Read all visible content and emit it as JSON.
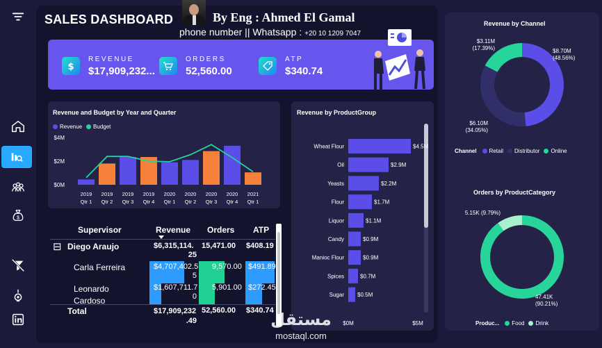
{
  "header": {
    "title": "SALES DASHBOARD",
    "byline": "By  Eng : Ahmed El Gamal",
    "phone_label": "phone number || Whatsapp :",
    "phone_number": "+20 10 1209 7047"
  },
  "kpis": [
    {
      "label": "REVENUE",
      "value": "$17,909,232...",
      "icon": "dollar-icon"
    },
    {
      "label": "ORDERS",
      "value": "52,560.00",
      "icon": "cart-icon"
    },
    {
      "label": "ATP",
      "value": "$340.74",
      "icon": "tag-icon"
    }
  ],
  "sidebar": {
    "items": [
      "menu-icon",
      "home-icon",
      "analytics-icon",
      "team-icon",
      "money-bag-icon",
      "filter-clear-icon",
      "bulb-icon",
      "linkedin-icon"
    ]
  },
  "colors": {
    "revenue": "#5b4ee8",
    "budget": "#24d39b",
    "orange": "#f5813a",
    "retail": "#5b4ee8",
    "distributor": "#302f6a",
    "online": "#27d59a",
    "food": "#27d59a",
    "drink": "#a8f0cf"
  },
  "chart_data": [
    {
      "type": "bar",
      "title": "Revenue and Budget by Year and Quarter",
      "legend": [
        "Revenue",
        "Budget"
      ],
      "y_ticks": [
        "$4M",
        "$2M",
        "$0M"
      ],
      "ylim": [
        0,
        4
      ],
      "categories": [
        {
          "year": "2019",
          "q": "Qtr 1"
        },
        {
          "year": "2019",
          "q": "Qtr 2"
        },
        {
          "year": "2019",
          "q": "Qtr 3"
        },
        {
          "year": "2019",
          "q": "Qtr 4"
        },
        {
          "year": "2020",
          "q": "Qtr 1"
        },
        {
          "year": "2020",
          "q": "Qtr 2"
        },
        {
          "year": "2020",
          "q": "Qtr 3"
        },
        {
          "year": "2020",
          "q": "Qtr 4"
        },
        {
          "year": "2021",
          "q": "Qtr 1"
        }
      ],
      "series": [
        {
          "name": "Revenue",
          "values": [
            0.45,
            1.8,
            2.35,
            2.35,
            1.9,
            2.1,
            2.85,
            3.3,
            1.05
          ],
          "highlight": [
            false,
            true,
            false,
            true,
            false,
            false,
            true,
            false,
            true
          ]
        },
        {
          "name": "Budget",
          "values": [
            0.6,
            2.4,
            2.4,
            2.0,
            1.95,
            2.55,
            3.4,
            2.3,
            1.1
          ]
        }
      ]
    },
    {
      "type": "bar",
      "title": "Revenue by ProductGroup",
      "orientation": "horizontal",
      "categories": [
        "Wheat Flour",
        "Oil",
        "Yeasts",
        "Flour",
        "Liquor",
        "Candy",
        "Manioc Flour",
        "Spices",
        "Sugar"
      ],
      "values": [
        4.5,
        2.9,
        2.2,
        1.7,
        1.1,
        0.9,
        0.9,
        0.7,
        0.5
      ],
      "value_labels": [
        "$4.5M",
        "$2.9M",
        "$2.2M",
        "$1.7M",
        "$1.1M",
        "$0.9M",
        "$0.9M",
        "$0.7M",
        "$0.5M"
      ],
      "x_ticks": [
        "$0M",
        "$5M"
      ],
      "xlim": [
        0,
        5
      ]
    },
    {
      "type": "pie",
      "title": "Revenue by Channel",
      "legend_title": "Channel",
      "slices": [
        {
          "name": "Retail",
          "value": 48.56,
          "label": "$8.70M",
          "pct": "(48.56%)"
        },
        {
          "name": "Distributor",
          "value": 34.05,
          "label": "$6.10M",
          "pct": "(34.05%)"
        },
        {
          "name": "Online",
          "value": 17.39,
          "label": "$3.11M",
          "pct": "(17.39%)"
        }
      ]
    },
    {
      "type": "pie",
      "title": "Orders by ProductCategory",
      "legend_title": "Produc...",
      "slices": [
        {
          "name": "Food",
          "value": 90.21,
          "label": "47.41K",
          "pct": "(90.21%)"
        },
        {
          "name": "Drink",
          "value": 9.79,
          "label": "5.15K (9.79%)",
          "pct": ""
        }
      ]
    }
  ],
  "table": {
    "headers": [
      "Supervisor",
      "Revenue",
      "Orders",
      "ATP"
    ],
    "expand_symbol": "⊟",
    "group": {
      "name": "Diego Araujo",
      "revenue": "$6,315,114.",
      "revenue_2": "25",
      "orders": "15,471.00",
      "atp": "$408.19"
    },
    "rows": [
      {
        "name": "Carla Ferreira",
        "name_2": "",
        "revenue": "$4,707,402.5",
        "revenue_2": "5",
        "orders": "9,570.00",
        "atp": "$491.89",
        "revenue_fill": 0.75,
        "orders_fill": 0.62,
        "atp_fill": 0.95
      },
      {
        "name": "Leonardo",
        "name_2": "Cardoso",
        "revenue": "$1,607,711.7",
        "revenue_2": "0",
        "orders": "5,901.00",
        "atp": "$272.45",
        "revenue_fill": 0.26,
        "orders_fill": 0.38,
        "atp_fill": 0.55
      }
    ],
    "total": {
      "name": "Total",
      "revenue": "$17,909,232",
      "revenue_2": ".49",
      "orders": "52,560.00",
      "atp": "$340.74"
    }
  },
  "watermark": {
    "arabic": "مستقل",
    "latin": "mostaql.com"
  }
}
